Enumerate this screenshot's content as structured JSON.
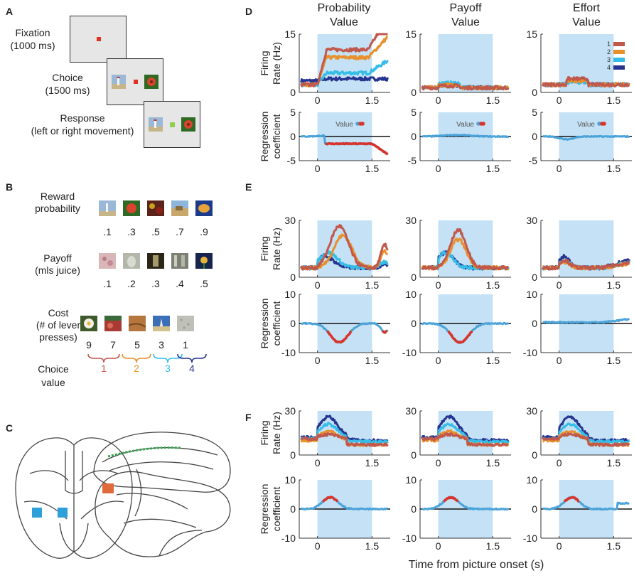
{
  "panel_labels": {
    "a": "A",
    "b": "B",
    "c": "C",
    "d": "D",
    "e": "E",
    "f": "F"
  },
  "task": {
    "fixation": "Fixation",
    "fixation_time": "(1000 ms)",
    "choice": "Choice",
    "choice_time": "(1500 ms)",
    "response": "Response",
    "response_detail": "(left or right movement)"
  },
  "stimuli": {
    "rows": [
      {
        "label_line1": "Reward",
        "label_line2": "probability",
        "values": [
          ".1",
          ".3",
          ".5",
          ".7",
          ".9"
        ]
      },
      {
        "label_line1": "Payoff",
        "label_line2": "(mls juice)",
        "values": [
          ".1",
          ".2",
          ".3",
          ".4",
          ".5"
        ]
      },
      {
        "label_line1": "Cost",
        "label_line2": "(# of lever",
        "label_line3": "presses)",
        "values": [
          "9",
          "7",
          "5",
          "3",
          "1"
        ]
      }
    ],
    "choice_value_line1": "Choice",
    "choice_value_line2": "value",
    "brackets": [
      "1",
      "2",
      "3",
      "4"
    ]
  },
  "colors": {
    "v1": "#c0594b",
    "v2": "#e8902c",
    "v3": "#35bde8",
    "v4": "#26348f",
    "reg": "#4aa3d9",
    "reg_sig": "#d9342b",
    "shade": "#c5e1f5"
  },
  "columns": [
    "Probability Value",
    "Payoff Value",
    "Effort Value"
  ],
  "column_title_lines": [
    [
      "Probability",
      "Value"
    ],
    [
      "Payoff",
      "Value"
    ],
    [
      "Effort",
      "Value"
    ]
  ],
  "axis": {
    "firing_rate": "Firing Rate (Hz)",
    "firing_rate_l1": "Firing",
    "firing_rate_l2": "Rate (Hz)",
    "regression": "Regression coefficient",
    "regression_l1": "Regression",
    "regression_l2": "coefficient",
    "xlabel": "Time from picture onset (s)",
    "xticks": [
      "0",
      "1.5"
    ]
  },
  "legend": {
    "title": "Value",
    "entries": [
      "1",
      "2",
      "3",
      "4"
    ]
  },
  "chart_data": [
    {
      "panel": "D",
      "type": "line",
      "row": "firing",
      "ylim": [
        0,
        15
      ],
      "yticks": [
        "0",
        "15"
      ],
      "x_range": [
        -0.5,
        2.0
      ],
      "shaded_window": [
        0,
        1.5
      ],
      "series": [
        {
          "name": "1",
          "column": "Probability Value",
          "peak": 15
        },
        {
          "name": "2",
          "column": "Probability Value",
          "peak": 12
        },
        {
          "name": "3",
          "column": "Probability Value",
          "peak": 7
        },
        {
          "name": "4",
          "column": "Probability Value",
          "peak": 4
        }
      ]
    },
    {
      "panel": "D",
      "type": "line",
      "row": "regression",
      "ylim": [
        -5,
        5
      ],
      "yticks": [
        "5",
        "0",
        "-5"
      ],
      "x_range": [
        -0.5,
        2.0
      ]
    },
    {
      "panel": "E",
      "type": "line",
      "row": "firing",
      "ylim": [
        0,
        30
      ],
      "yticks": [
        "0",
        "30"
      ],
      "x_range": [
        -0.5,
        2.0
      ],
      "shaded_window": [
        0,
        1.5
      ],
      "series": [
        {
          "name": "1",
          "column": "Probability Value",
          "peak": 28
        },
        {
          "name": "1",
          "column": "Payoff Value",
          "peak": 26
        },
        {
          "name": "4",
          "column": "Effort Value",
          "peak": 12
        }
      ]
    },
    {
      "panel": "E",
      "type": "line",
      "row": "regression",
      "ylim": [
        -10,
        10
      ],
      "yticks": [
        "10",
        "0",
        "-10"
      ],
      "x_range": [
        -0.5,
        2.0
      ]
    },
    {
      "panel": "F",
      "type": "line",
      "row": "firing",
      "ylim": [
        0,
        30
      ],
      "yticks": [
        "0",
        "30"
      ],
      "x_range": [
        -0.5,
        2.0
      ],
      "shaded_window": [
        0,
        1.5
      ],
      "series": [
        {
          "name": "4",
          "column": "Probability Value",
          "peak": 25
        },
        {
          "name": "4",
          "column": "Payoff Value",
          "peak": 26
        },
        {
          "name": "4",
          "column": "Effort Value",
          "peak": 27
        }
      ]
    },
    {
      "panel": "F",
      "type": "line",
      "row": "regression",
      "ylim": [
        -10,
        10
      ],
      "yticks": [
        "10",
        "0",
        "-10"
      ],
      "x_range": [
        -0.5,
        2.0
      ]
    }
  ]
}
